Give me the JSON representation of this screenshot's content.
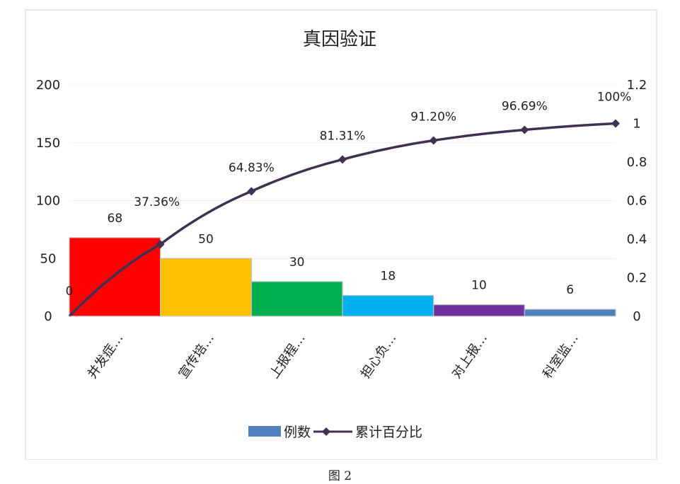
{
  "chart_data": {
    "type": "bar",
    "title": "真因验证",
    "categories": [
      "并发症…",
      "宣传培…",
      "上报程…",
      "担心负…",
      "对上报…",
      "科室监…"
    ],
    "series": [
      {
        "name": "例数",
        "type": "bar",
        "axis": "left",
        "values": [
          68,
          50,
          30,
          18,
          10,
          6
        ],
        "colors": [
          "#ff0000",
          "#ffc000",
          "#00b050",
          "#00b0f0",
          "#7030a0",
          "#4f81bd"
        ]
      },
      {
        "name": "累计百分比",
        "type": "line",
        "axis": "right",
        "x": [
          "start",
          "并发症…",
          "宣传培…",
          "上报程…",
          "担心负…",
          "对上报…",
          "科室监…"
        ],
        "values": [
          0,
          0.3736,
          0.6483,
          0.8131,
          0.912,
          0.9669,
          1.0
        ],
        "labels": [
          "0",
          "37.36%",
          "64.83%",
          "81.31%",
          "91.20%",
          "96.69%",
          "100%"
        ],
        "color": "#403152"
      }
    ],
    "y_left": {
      "lim": [
        0,
        200
      ],
      "ticks": [
        "0",
        "50",
        "100",
        "150",
        "200"
      ]
    },
    "y_right": {
      "lim": [
        0,
        1.2
      ],
      "ticks": [
        "0",
        "0.2",
        "0.4",
        "0.6",
        "0.8",
        "1",
        "1.2"
      ]
    },
    "legend": {
      "position": "bottom"
    },
    "grid": true
  },
  "caption": "图 2"
}
